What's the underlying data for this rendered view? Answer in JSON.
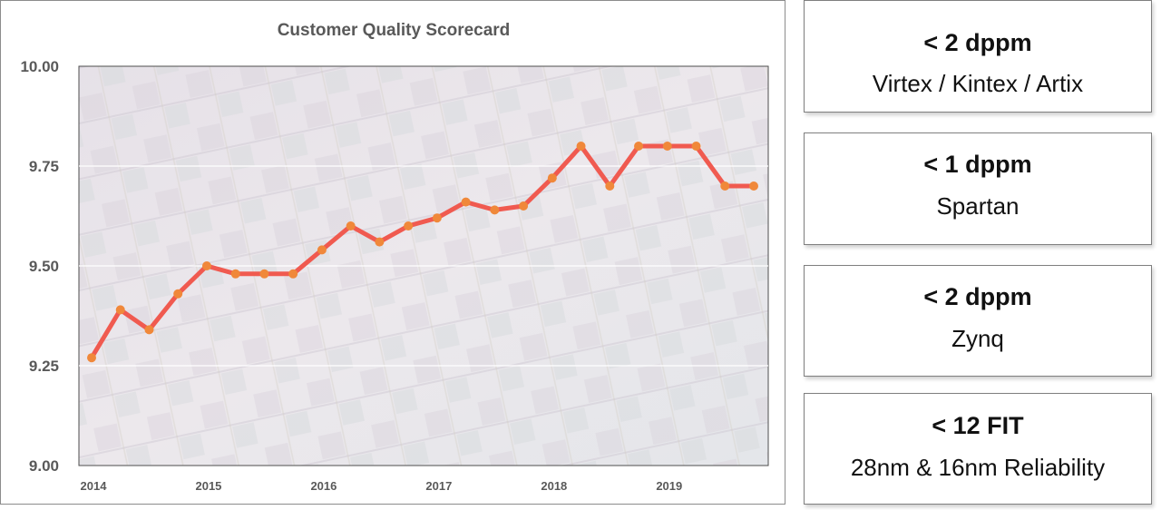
{
  "chart_data": {
    "type": "line",
    "title": "Customer Quality Scorecard",
    "xlabel": "",
    "ylabel": "",
    "ylim": [
      9.0,
      10.0
    ],
    "yticks": [
      "9.00",
      "9.25",
      "9.50",
      "9.75",
      "10.00"
    ],
    "year_labels": [
      "2014",
      "2015",
      "2016",
      "2017",
      "2018",
      "2019"
    ],
    "grid": "horizontal",
    "background": "semiconductor die photo (faded)",
    "line_color": "#f05a50",
    "marker_color": "#f0883a",
    "series": [
      {
        "values": [
          9.27,
          9.39,
          9.34,
          9.43,
          9.5,
          9.48,
          9.48,
          9.48,
          9.54,
          9.6,
          9.56,
          9.6,
          9.62,
          9.66,
          9.64,
          9.65,
          9.72,
          9.8,
          9.7,
          9.8,
          9.8,
          9.8,
          9.7,
          9.7
        ]
      }
    ]
  },
  "cards": [
    {
      "metric": "< 2 dppm",
      "label": "Virtex / Kintex / Artix"
    },
    {
      "metric": "< 1 dppm",
      "label": "Spartan"
    },
    {
      "metric": "< 2 dppm",
      "label": "Zynq"
    },
    {
      "metric": "< 12 FIT",
      "label": "28nm & 16nm Reliability"
    }
  ]
}
